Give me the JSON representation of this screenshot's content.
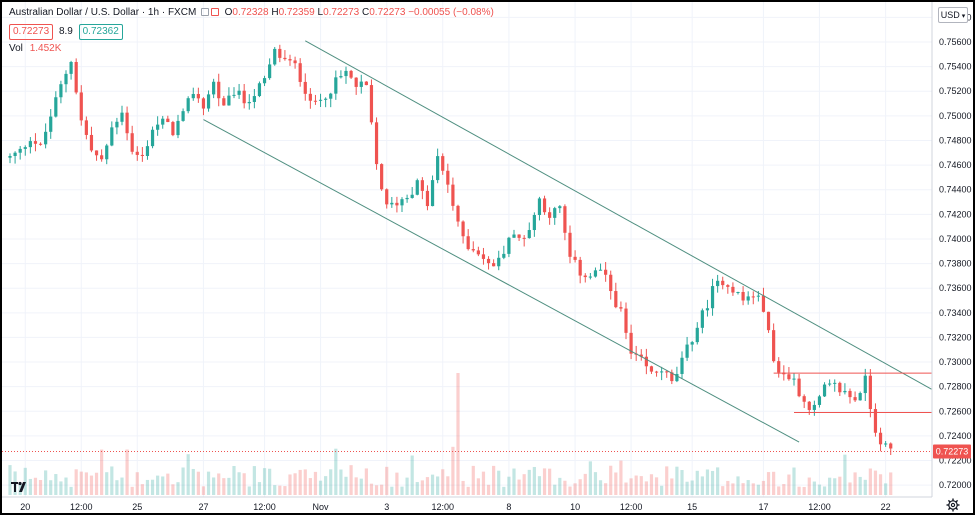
{
  "header": {
    "title": "Australian Dollar / U.S. Dollar · 1h · FXCM",
    "ohlc": {
      "O": "0.72328",
      "H": "0.72359",
      "L": "0.72273",
      "C": "0.72273",
      "change": "−0.00055 (−0.08%)"
    },
    "bid": "0.72273",
    "spread": "8.9",
    "ask": "0.72362",
    "vol_label": "Vol",
    "vol_value": "1.452K"
  },
  "currency": "USD",
  "colors": {
    "up": "#26a69a",
    "down": "#ef5350",
    "channel": "#4f8f80",
    "hline": "#ef5350",
    "text": "#131722",
    "grid": "#f0f3fa"
  },
  "chart_data": {
    "type": "candlestick",
    "symbol": "Australian Dollar / U.S. Dollar",
    "interval": "1h",
    "source": "FXCM",
    "y_ticks": [
      "0.75800",
      "0.75600",
      "0.75400",
      "0.75200",
      "0.75000",
      "0.74800",
      "0.74600",
      "0.74400",
      "0.74200",
      "0.74000",
      "0.73800",
      "0.73600",
      "0.73400",
      "0.73200",
      "0.73000",
      "0.72800",
      "0.72600",
      "0.72400",
      "0.72200",
      "0.72000"
    ],
    "ylim": [
      0.7192,
      0.7586
    ],
    "last_price": "0.72273",
    "x_ticks": [
      "20",
      "12:00",
      "25",
      "27",
      "12:00",
      "Nov",
      "3",
      "12:00",
      "8",
      "10",
      "12:00",
      "15",
      "17",
      "12:00",
      "22"
    ],
    "x_tick_index": [
      3,
      14,
      25,
      38,
      50,
      61,
      74,
      85,
      98,
      111,
      122,
      134,
      148,
      159,
      172
    ],
    "close_path": [
      [
        0,
        0.7466
      ],
      [
        2,
        0.7471
      ],
      [
        4,
        0.7483
      ],
      [
        6,
        0.7474
      ],
      [
        8,
        0.75
      ],
      [
        10,
        0.7524
      ],
      [
        12,
        0.7546
      ],
      [
        14,
        0.7496
      ],
      [
        16,
        0.7472
      ],
      [
        18,
        0.7462
      ],
      [
        20,
        0.749
      ],
      [
        22,
        0.7505
      ],
      [
        24,
        0.747
      ],
      [
        26,
        0.7466
      ],
      [
        28,
        0.749
      ],
      [
        30,
        0.7495
      ],
      [
        32,
        0.7488
      ],
      [
        34,
        0.75
      ],
      [
        36,
        0.752
      ],
      [
        38,
        0.7508
      ],
      [
        40,
        0.7527
      ],
      [
        42,
        0.7505
      ],
      [
        44,
        0.752
      ],
      [
        46,
        0.7512
      ],
      [
        48,
        0.7518
      ],
      [
        50,
        0.7528
      ],
      [
        52,
        0.7552
      ],
      [
        54,
        0.7545
      ],
      [
        56,
        0.754
      ],
      [
        58,
        0.7522
      ],
      [
        60,
        0.7508
      ],
      [
        62,
        0.7518
      ],
      [
        64,
        0.7527
      ],
      [
        66,
        0.7535
      ],
      [
        68,
        0.7524
      ],
      [
        70,
        0.7523
      ],
      [
        72,
        0.746
      ],
      [
        74,
        0.7425
      ],
      [
        76,
        0.743
      ],
      [
        78,
        0.7435
      ],
      [
        80,
        0.7445
      ],
      [
        82,
        0.7428
      ],
      [
        84,
        0.7465
      ],
      [
        86,
        0.7445
      ],
      [
        88,
        0.741
      ],
      [
        90,
        0.7395
      ],
      [
        92,
        0.739
      ],
      [
        94,
        0.7378
      ],
      [
        96,
        0.7382
      ],
      [
        98,
        0.7402
      ],
      [
        100,
        0.74
      ],
      [
        102,
        0.7408
      ],
      [
        104,
        0.7432
      ],
      [
        106,
        0.742
      ],
      [
        108,
        0.7424
      ],
      [
        110,
        0.7384
      ],
      [
        112,
        0.7373
      ],
      [
        114,
        0.737
      ],
      [
        116,
        0.7375
      ],
      [
        118,
        0.7358
      ],
      [
        120,
        0.734
      ],
      [
        122,
        0.7305
      ],
      [
        124,
        0.73
      ],
      [
        126,
        0.729
      ],
      [
        128,
        0.7295
      ],
      [
        130,
        0.7282
      ],
      [
        132,
        0.73
      ],
      [
        134,
        0.732
      ],
      [
        136,
        0.7338
      ],
      [
        138,
        0.7358
      ],
      [
        140,
        0.7367
      ],
      [
        142,
        0.736
      ],
      [
        144,
        0.735
      ],
      [
        146,
        0.7355
      ],
      [
        148,
        0.7345
      ],
      [
        150,
        0.73
      ],
      [
        152,
        0.729
      ],
      [
        154,
        0.7285
      ],
      [
        156,
        0.7268
      ],
      [
        158,
        0.7262
      ],
      [
        160,
        0.7278
      ],
      [
        162,
        0.728
      ],
      [
        164,
        0.7275
      ],
      [
        166,
        0.727
      ],
      [
        168,
        0.7285
      ],
      [
        170,
        0.7245
      ],
      [
        172,
        0.723
      ],
      [
        173,
        0.72273
      ]
    ],
    "n_bars": 174,
    "volume_peak_index": 88,
    "drawings": {
      "channel_upper": [
        [
          58,
          0.7561
        ],
        [
          181,
          0.7278
        ]
      ],
      "channel_lower": [
        [
          38,
          0.7497
        ],
        [
          155,
          0.7235
        ]
      ],
      "hline_upper": {
        "y": 0.7291,
        "x_from": 150,
        "x_to": 181
      },
      "hline_lower": {
        "y": 0.7259,
        "x_from": 154,
        "x_to": 181
      }
    }
  }
}
